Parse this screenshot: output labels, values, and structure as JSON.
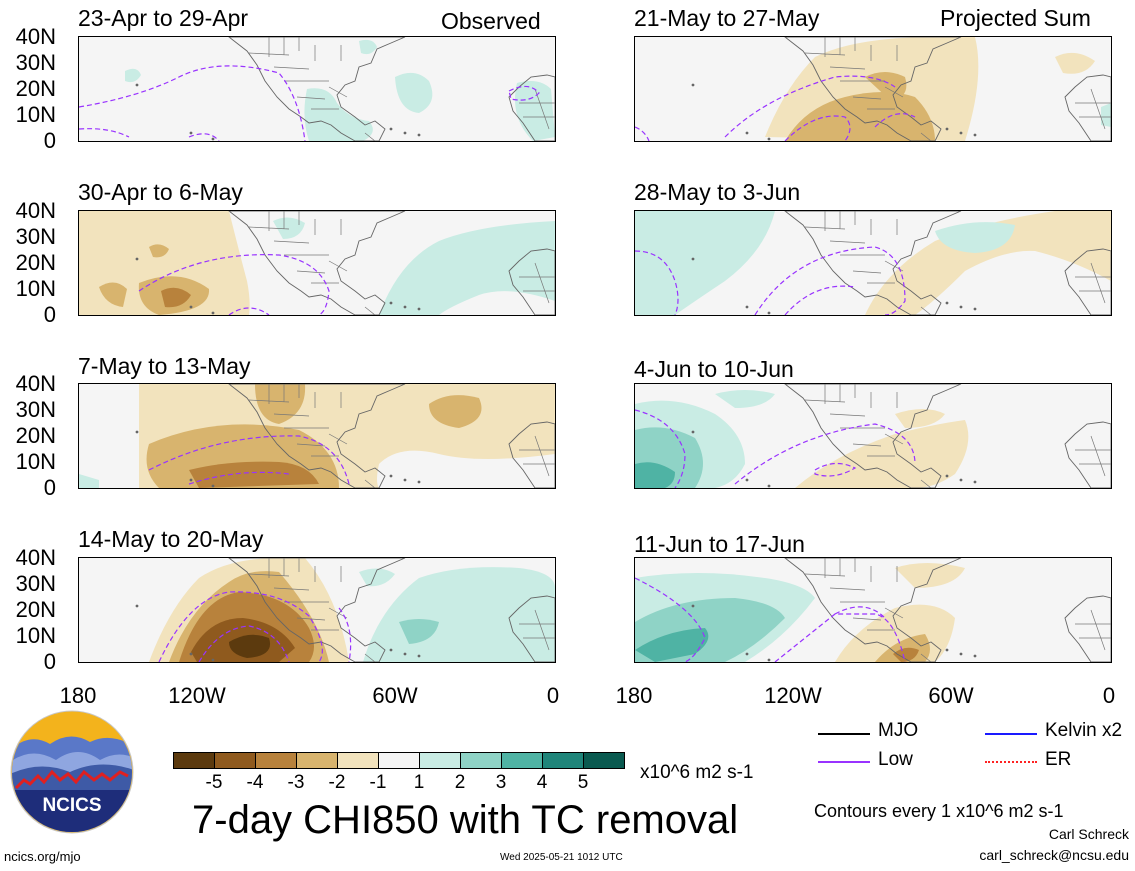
{
  "observed_label": "Observed",
  "projected_label": "Projected Sum",
  "panels_left": [
    {
      "period": "23-Apr to 29-Apr"
    },
    {
      "period": "30-Apr to 6-May"
    },
    {
      "period": "7-May to 13-May"
    },
    {
      "period": "14-May to 20-May"
    }
  ],
  "panels_right": [
    {
      "period": "21-May to 27-May"
    },
    {
      "period": "28-May to 3-Jun"
    },
    {
      "period": "4-Jun to 10-Jun"
    },
    {
      "period": "11-Jun to 17-Jun"
    }
  ],
  "lat_labels": [
    "40N",
    "30N",
    "20N",
    "10N",
    "0"
  ],
  "lon_labels": [
    "180",
    "120W",
    "60W",
    "0"
  ],
  "legend": {
    "mjo": "MJO",
    "kelvin": "Kelvin x2",
    "low": "Low",
    "er": "ER",
    "colors": {
      "mjo": "#000000",
      "kelvin": "#1a1aff",
      "low": "#9933ff",
      "er": "#ff2222"
    }
  },
  "colorbar": {
    "labels": [
      "-5",
      "-4",
      "-3",
      "-2",
      "-1",
      "1",
      "2",
      "3",
      "4",
      "5"
    ],
    "colors": [
      "#5c3a0e",
      "#8f5a1e",
      "#b8823c",
      "#d8b46e",
      "#f2e3bd",
      "#f5f5f5",
      "#c9ece4",
      "#8fd3c6",
      "#4fb3a4",
      "#1f857a",
      "#0a5a50",
      "#04362f"
    ],
    "units": "x10^6 m2 s-1"
  },
  "main_title": "7-day CHI850 with TC removal",
  "contour_note": "Contours every 1 x10^6 m2 s-1",
  "author": "Carl Schreck",
  "email": "carl_schreck@ncsu.edu",
  "url": "ncics.org/mjo",
  "timestamp": "Wed 2025-05-21 1012 UTC",
  "logo_text": "NCICS"
}
